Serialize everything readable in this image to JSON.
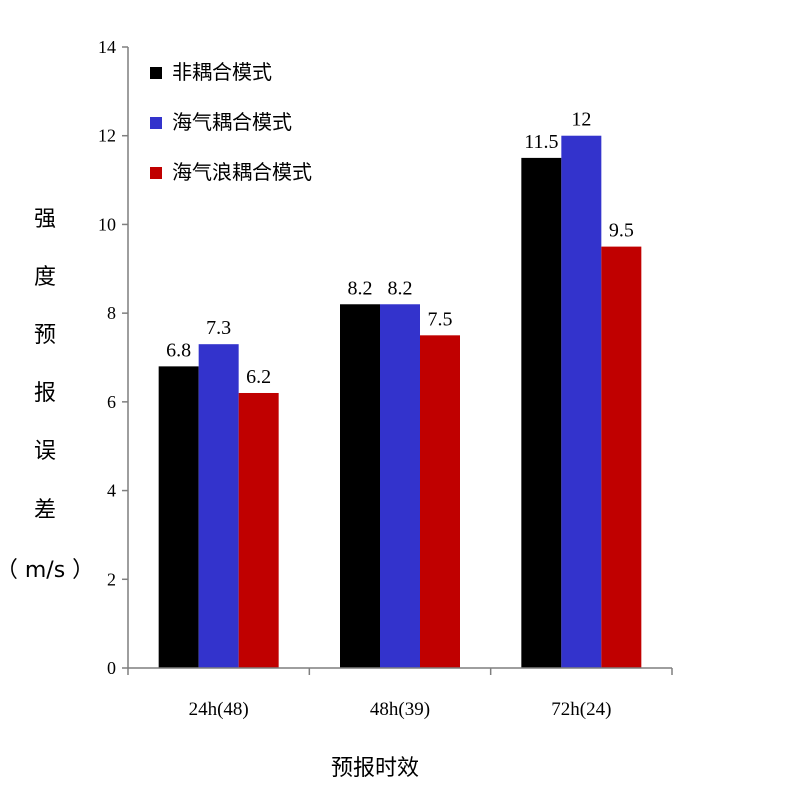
{
  "chart_data": {
    "type": "bar",
    "categories": [
      "24h(48)",
      "48h(39)",
      "72h(24)"
    ],
    "series": [
      {
        "name": "非耦合模式",
        "color": "#000000",
        "values": [
          6.8,
          8.2,
          11.5
        ],
        "labels": [
          "6.8",
          "8.2",
          "11.5"
        ]
      },
      {
        "name": "海气耦合模式",
        "color": "#3333cc",
        "values": [
          7.3,
          8.2,
          12
        ],
        "labels": [
          "7.3",
          "8.2",
          "12"
        ]
      },
      {
        "name": "海气浪耦合模式",
        "color": "#c00000",
        "values": [
          6.2,
          7.5,
          9.5
        ],
        "labels": [
          "6.2",
          "7.5",
          "9.5"
        ]
      }
    ],
    "xlabel": "预报时效",
    "ylabel": "强度预报误差（m/s）",
    "ylabel_lines": [
      "强",
      "度",
      "预",
      "报",
      "误",
      "差",
      "（ m/s ）"
    ],
    "ylim": [
      0,
      14
    ],
    "yticks": [
      0,
      2,
      4,
      6,
      8,
      10,
      12,
      14
    ],
    "ytick_labels": [
      "0",
      "2",
      "4",
      "6",
      "8",
      "10",
      "12",
      "14"
    ],
    "grid": false,
    "legend_position": "top-left"
  }
}
